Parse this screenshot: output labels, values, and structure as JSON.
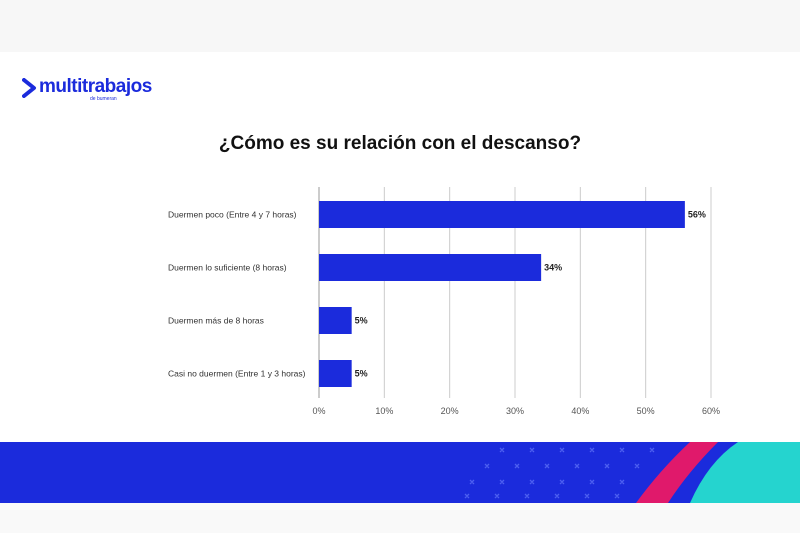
{
  "brand": {
    "name": "multitrabajos",
    "subtitle": "de bumeran",
    "primary_color": "#1b2bdc",
    "accent_pink": "#e0196b",
    "accent_teal": "#25d4cf"
  },
  "chart_data": {
    "type": "bar",
    "orientation": "horizontal",
    "title": "¿Cómo es su relación con el descanso?",
    "categories": [
      "Duermen poco (Entre 4 y 7 horas)",
      "Duermen lo suficiente (8 horas)",
      "Duermen más de 8 horas",
      "Casi no duermen (Entre 1 y 3 horas)"
    ],
    "values": [
      56,
      34,
      5,
      5
    ],
    "data_labels": [
      "56%",
      "34%",
      "5%",
      "5%"
    ],
    "xlim": [
      0,
      60
    ],
    "ticks": [
      0,
      10,
      20,
      30,
      40,
      50,
      60
    ],
    "tick_labels": [
      "0%",
      "10%",
      "20%",
      "30%",
      "40%",
      "50%",
      "60%"
    ],
    "grid": true,
    "bar_color": "#1b2bdc",
    "xlabel": "",
    "ylabel": ""
  }
}
